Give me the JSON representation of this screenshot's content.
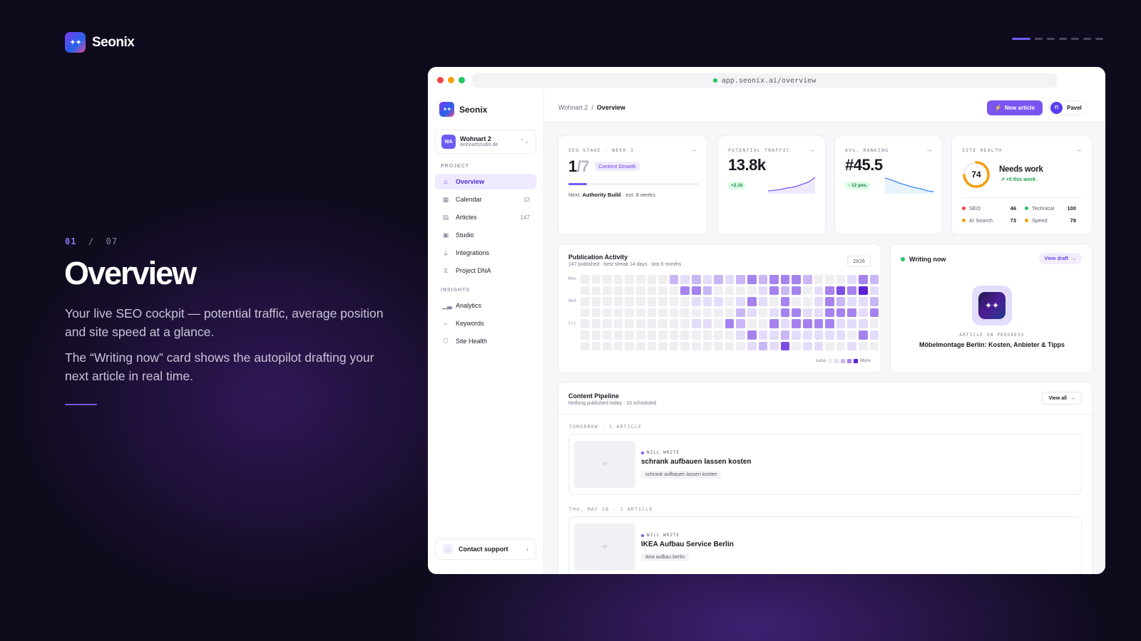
{
  "brand": {
    "name": "Seonix",
    "logo_glyph": "✦✦"
  },
  "pager": {
    "total": 7,
    "current": 1
  },
  "slide": {
    "current": "01",
    "sep": "/",
    "total": "07",
    "title": "Overview",
    "desc1": "Your live SEO cockpit — potential traffic, average position and site speed at a glance.",
    "desc2": "The “Writing now” card shows the autopilot drafting your next article in real time."
  },
  "browser": {
    "url": "app.seonix.ai/overview"
  },
  "sidebar": {
    "brand": "Seonix",
    "project": {
      "initials": "WA",
      "name": "Wohnart 2",
      "domain": "wohnartstudio.de"
    },
    "section_project": "PROJECT",
    "project_items": [
      {
        "label": "Overview",
        "icon": "home-icon",
        "glyph": "⌂",
        "count": ""
      },
      {
        "label": "Calendar",
        "icon": "calendar-icon",
        "glyph": "▦",
        "count": "12"
      },
      {
        "label": "Articles",
        "icon": "document-icon",
        "glyph": "▤",
        "count": "147"
      },
      {
        "label": "Studio",
        "icon": "image-icon",
        "glyph": "▣",
        "count": ""
      },
      {
        "label": "Integrations",
        "icon": "plug-icon",
        "glyph": "⏚",
        "count": ""
      },
      {
        "label": "Project DNA",
        "icon": "dna-icon",
        "glyph": "⧖",
        "count": ""
      }
    ],
    "section_insights": "INSIGHTS",
    "insight_items": [
      {
        "label": "Analytics",
        "icon": "bar-chart-icon",
        "glyph": "▁▃",
        "count": ""
      },
      {
        "label": "Keywords",
        "icon": "search-icon",
        "glyph": "⌕",
        "count": ""
      },
      {
        "label": "Site Health",
        "icon": "shield-icon",
        "glyph": "⛉",
        "count": ""
      }
    ],
    "support": "Contact support"
  },
  "topbar": {
    "crumb_project": "Wohnart 2",
    "crumb_sep": "/",
    "crumb_page": "Overview",
    "new_article": "New article",
    "user_initial": "П",
    "user_name": "Pavel"
  },
  "stats": {
    "seo_stage": {
      "label": "SEO STAGE · WEEK 3",
      "value": "1",
      "total": "/7",
      "badge": "Content Growth",
      "progress": 0.14,
      "next_prefix": "Next:",
      "next_name": "Authority Build",
      "next_suffix": "· est. 8 weeks"
    },
    "traffic": {
      "label": "POTENTIAL TRAFFIC",
      "value": "13.8k",
      "delta": "+2.1k"
    },
    "ranking": {
      "label": "AVG. RANKING",
      "value": "#45.5",
      "delta": "↑ 12 pos."
    },
    "health": {
      "label": "SITE HEALTH",
      "score": "74",
      "score_value": 74,
      "status": "Needs work",
      "trend": "↗ +5 this week",
      "metrics": [
        {
          "name": "SEO",
          "value": "46",
          "color": "#ef4444"
        },
        {
          "name": "Technical",
          "value": "100",
          "color": "#22c55e"
        },
        {
          "name": "AI Search",
          "value": "73",
          "color": "#f59e0b"
        },
        {
          "name": "Speed",
          "value": "78",
          "color": "#f59e0b"
        }
      ]
    }
  },
  "activity": {
    "title": "Publication Activity",
    "subtitle": "147 published · best streak 14 days · last 6 months",
    "year": "2026",
    "day_labels": [
      "Mon",
      "Wed",
      "Fri"
    ],
    "legend_less": "Less",
    "legend_more": "More",
    "palette": [
      "#efeff3",
      "#e4dcfb",
      "#c9b6f5",
      "#a582ee",
      "#7c4ee6",
      "#5b21d9"
    ]
  },
  "writing": {
    "title": "Writing now",
    "view_draft": "View draft",
    "status": "ARTICLE IN PROGRESS",
    "article": "Möbelmontage Berlin: Kosten, Anbieter & Tipps"
  },
  "pipeline": {
    "title": "Content Pipeline",
    "subtitle": "Nothing published today · 10 scheduled",
    "view_all": "View all",
    "groups": [
      {
        "label": "TOMORROW · 1 ARTICLE",
        "status": "WILL WRITE",
        "title": "schrank aufbauen lassen kosten",
        "keyword": "schrank aufbauen lassen kosten"
      },
      {
        "label": "THU, MAY 28 · 1 ARTICLE",
        "status": "WILL WRITE",
        "title": "IKEA Aufbau Service Berlin",
        "keyword": "ikea aufbau berlin"
      }
    ]
  }
}
